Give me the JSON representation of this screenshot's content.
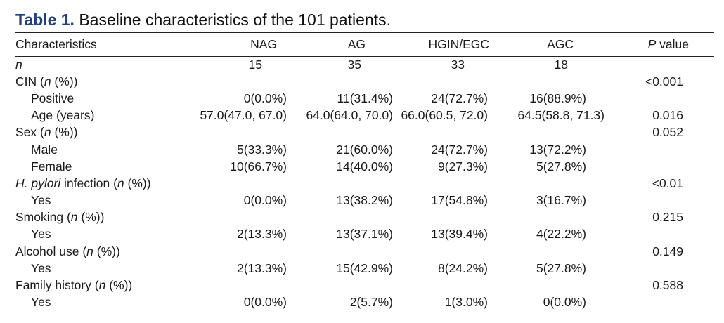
{
  "caption": {
    "number": "Table 1.",
    "text": "Baseline characteristics of the 101 patients."
  },
  "header": {
    "characteristics": "Characteristics",
    "nag": "NAG",
    "ag": "AG",
    "hgin_egc": "HGIN/EGC",
    "agc": "AGC",
    "p_italic": "P",
    "p_rest": " value"
  },
  "rows": {
    "n": {
      "label": "n",
      "nag": "15",
      "ag": "35",
      "hgin": "33",
      "agc": "18",
      "p": ""
    },
    "cin": {
      "label": "CIN (",
      "label_i": "n",
      "label_end": " (%))",
      "p": "<0.001"
    },
    "positive": {
      "label": "Positive",
      "nag": "0(0.0%)",
      "ag": "11(31.4%)",
      "hgin": "24(72.7%)",
      "agc": "16(88.9%)"
    },
    "age": {
      "label": "Age (years)",
      "nag": "57.0(47.0, 67.0)",
      "ag": "64.0(64.0, 70.0)",
      "hgin": "66.0(60.5, 72.0)",
      "agc": "64.5(58.8, 71.3)",
      "p": "0.016"
    },
    "sex": {
      "label": "Sex (",
      "label_i": "n",
      "label_end": " (%))",
      "p": "0.052"
    },
    "male": {
      "label": "Male",
      "nag": "5(33.3%)",
      "ag": "21(60.0%)",
      "hgin": "24(72.7%)",
      "agc": "13(72.2%)"
    },
    "female": {
      "label": "Female",
      "nag": "10(66.7%)",
      "ag": "14(40.0%)",
      "hgin": "9(27.3%)",
      "agc": "5(27.8%)"
    },
    "hpylori": {
      "label_i1": "H. pylori",
      "label": " infection (",
      "label_i": "n",
      "label_end": " (%))",
      "p": "<0.01"
    },
    "hpylori_yes": {
      "label": "Yes",
      "nag": "0(0.0%)",
      "ag": "13(38.2%)",
      "hgin": "17(54.8%)",
      "agc": "3(16.7%)"
    },
    "smoking": {
      "label": "Smoking (",
      "label_i": "n",
      "label_end": " (%))",
      "p": "0.215"
    },
    "smoking_yes": {
      "label": "Yes",
      "nag": "2(13.3%)",
      "ag": "13(37.1%)",
      "hgin": "13(39.4%)",
      "agc": "4(22.2%)"
    },
    "alcohol": {
      "label": "Alcohol use (",
      "label_i": "n",
      "label_end": " (%))",
      "p": "0.149"
    },
    "alcohol_yes": {
      "label": "Yes",
      "nag": "2(13.3%)",
      "ag": "15(42.9%)",
      "hgin": "8(24.2%)",
      "agc": "5(27.8%)"
    },
    "family": {
      "label": "Family history (",
      "label_i": "n",
      "label_end": " (%))",
      "p": "0.588"
    },
    "family_yes": {
      "label": "Yes",
      "nag": "0(0.0%)",
      "ag": "2(5.7%)",
      "hgin": "1(3.0%)",
      "agc": "0(0.0%)"
    }
  }
}
